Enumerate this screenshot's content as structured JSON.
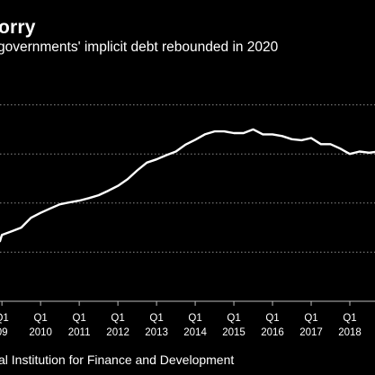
{
  "header": {
    "title": "orry",
    "subtitle": "governments' implicit debt rebounded in 2020"
  },
  "footer": {
    "source": "al Institution for Finance and Development"
  },
  "colors": {
    "background": "#000000",
    "line": "#ffffff",
    "text": "#ffffff",
    "gridline": "#8c8c8c"
  },
  "chart_data": {
    "type": "line",
    "title": "",
    "xlabel": "",
    "ylabel": "",
    "grid": true,
    "x_ticks": [
      {
        "q": "Q1",
        "year": "09",
        "x": 2009.0
      },
      {
        "q": "Q1",
        "year": "2010",
        "x": 2010.0
      },
      {
        "q": "Q1",
        "year": "2011",
        "x": 2011.0
      },
      {
        "q": "Q1",
        "year": "2012",
        "x": 2012.0
      },
      {
        "q": "Q1",
        "year": "2013",
        "x": 2013.0
      },
      {
        "q": "Q1",
        "year": "2014",
        "x": 2014.0
      },
      {
        "q": "Q1",
        "year": "2015",
        "x": 2015.0
      },
      {
        "q": "Q1",
        "year": "2016",
        "x": 2016.0
      },
      {
        "q": "Q1",
        "year": "2017",
        "x": 2017.0
      },
      {
        "q": "Q1",
        "year": "2018",
        "x": 2018.0
      },
      {
        "q": "",
        "year": "2",
        "x": 2019.0
      }
    ],
    "xlim": [
      2008.95,
      2019.0
    ],
    "ylim": [
      0,
      1
    ],
    "gridlines_y": [
      0.2,
      0.4,
      0.6,
      0.8
    ],
    "series": [
      {
        "x": [
          2008.95,
          2009.0,
          2009.25,
          2009.5,
          2009.75,
          2010.0,
          2010.25,
          2010.5,
          2010.75,
          2011.0,
          2011.25,
          2011.5,
          2011.75,
          2012.0,
          2012.25,
          2012.5,
          2012.75,
          2013.0,
          2013.25,
          2013.5,
          2013.75,
          2014.0,
          2014.25,
          2014.5,
          2014.75,
          2015.0,
          2015.25,
          2015.5,
          2015.75,
          2016.0,
          2016.25,
          2016.5,
          2016.75,
          2017.0,
          2017.25,
          2017.5,
          2017.75,
          2018.0,
          2018.25,
          2018.5,
          2018.75,
          2019.0
        ],
        "values": [
          0.245,
          0.27,
          0.285,
          0.3,
          0.34,
          0.36,
          0.378,
          0.395,
          0.403,
          0.41,
          0.42,
          0.432,
          0.45,
          0.47,
          0.497,
          0.533,
          0.565,
          0.578,
          0.595,
          0.61,
          0.638,
          0.658,
          0.68,
          0.692,
          0.692,
          0.685,
          0.685,
          0.7,
          0.68,
          0.68,
          0.673,
          0.66,
          0.656,
          0.665,
          0.64,
          0.64,
          0.622,
          0.6,
          0.61,
          0.605,
          0.61,
          0.61
        ]
      }
    ]
  }
}
